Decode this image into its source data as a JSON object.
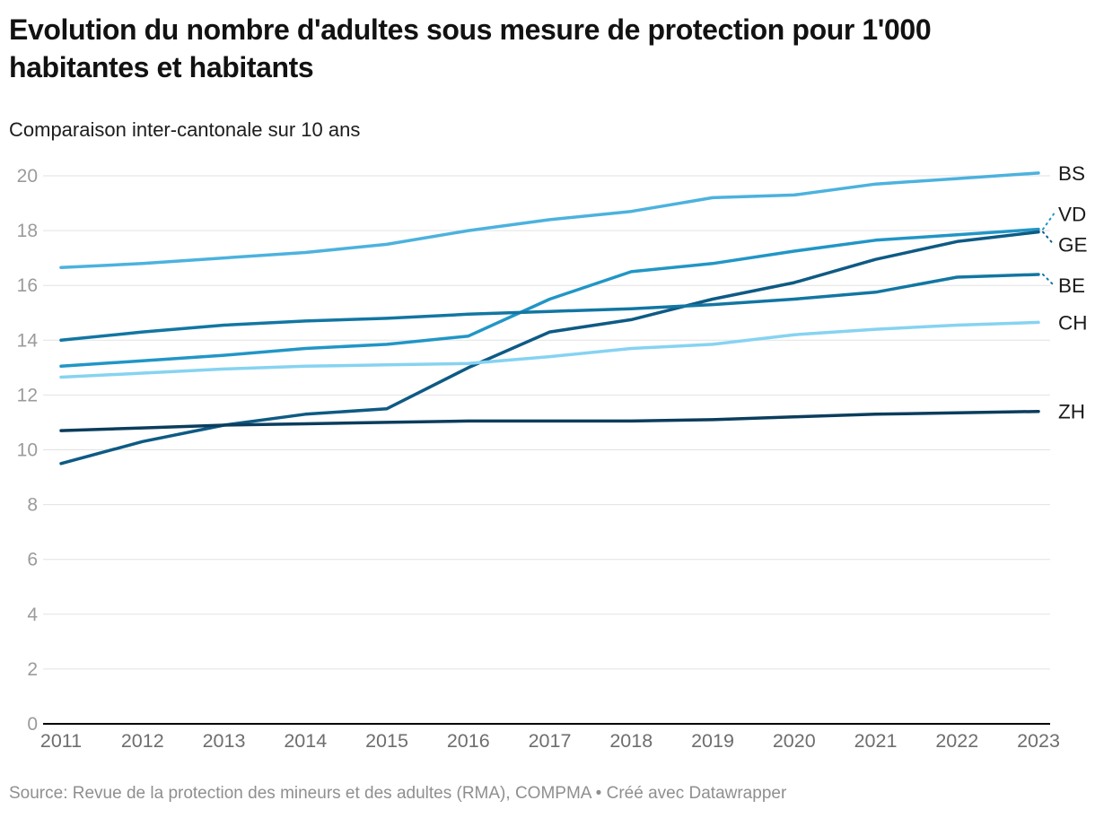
{
  "header": {
    "title": "Evolution du nombre d'adultes sous mesure de protection pour 1'000 habitantes et habitants",
    "subtitle": "Comparaison inter-cantonale sur 10 ans"
  },
  "footer": {
    "source_prefix": "Source: Revue de la protection des mineurs et des adultes (RMA), COMPMA",
    "separator": " • ",
    "credit": "Créé avec Datawrapper"
  },
  "chart_data": {
    "type": "line",
    "title": "Evolution du nombre d'adultes sous mesure de protection pour 1'000 habitantes et habitants",
    "subtitle": "Comparaison inter-cantonale sur 10 ans",
    "xlabel": "",
    "ylabel": "",
    "x": [
      2011,
      2012,
      2013,
      2014,
      2015,
      2016,
      2017,
      2018,
      2019,
      2020,
      2021,
      2022,
      2023
    ],
    "xlim": [
      2011,
      2023
    ],
    "ylim": [
      0,
      20
    ],
    "yticks": [
      0,
      2,
      4,
      6,
      8,
      10,
      12,
      14,
      16,
      18,
      20
    ],
    "grid": "horizontal",
    "grid_color": "#e2e2e2",
    "axis_color": "#000000",
    "ytick_label_color": "#9b9b9b",
    "xtick_label_color": "#6e6e6e",
    "legend_position": "end-of-line-labels-right",
    "series": [
      {
        "name": "BS",
        "color": "#4cb2de",
        "label_dy": 0,
        "values": [
          16.65,
          16.8,
          17.0,
          17.2,
          17.5,
          18.0,
          18.4,
          18.7,
          19.2,
          19.3,
          19.7,
          19.9,
          20.1
        ]
      },
      {
        "name": "VD",
        "color": "#2196c6",
        "label_dy": -17,
        "values": [
          13.05,
          13.25,
          13.45,
          13.7,
          13.85,
          14.15,
          15.5,
          16.5,
          16.8,
          17.25,
          17.65,
          17.85,
          18.05
        ]
      },
      {
        "name": "GE",
        "color": "#0e5a84",
        "label_dy": 14,
        "values": [
          9.5,
          10.3,
          10.9,
          11.3,
          11.5,
          13.0,
          14.3,
          14.75,
          15.5,
          16.1,
          16.95,
          17.6,
          17.95
        ]
      },
      {
        "name": "BE",
        "color": "#1276a2",
        "label_dy": 12,
        "values": [
          14.0,
          14.3,
          14.55,
          14.7,
          14.8,
          14.95,
          15.05,
          15.15,
          15.3,
          15.5,
          15.75,
          16.3,
          16.4
        ]
      },
      {
        "name": "CH",
        "color": "#86d3f1",
        "label_dy": 0,
        "values": [
          12.65,
          12.8,
          12.95,
          13.05,
          13.1,
          13.15,
          13.4,
          13.7,
          13.85,
          14.2,
          14.4,
          14.55,
          14.65
        ]
      },
      {
        "name": "ZH",
        "color": "#0b3d5c",
        "label_dy": 0,
        "values": [
          10.7,
          10.8,
          10.9,
          10.95,
          11.0,
          11.05,
          11.05,
          11.05,
          11.1,
          11.2,
          11.3,
          11.35,
          11.4
        ]
      }
    ]
  }
}
